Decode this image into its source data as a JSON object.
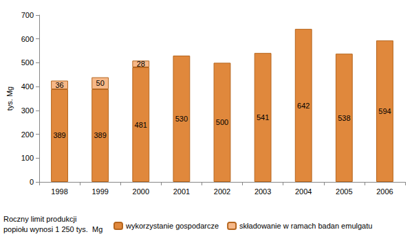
{
  "chart_data": {
    "type": "bar",
    "stacked": true,
    "y_label": "tys. Mg",
    "categories": [
      "1998",
      "1999",
      "2000",
      "2001",
      "2002",
      "2003",
      "2004",
      "2005",
      "2006"
    ],
    "series": [
      {
        "name": "wykorzystanie gospodarcze",
        "color": "#e0883c",
        "values": [
          389,
          389,
          481,
          530,
          500,
          541,
          642,
          538,
          594
        ]
      },
      {
        "name": "składowanie w ramach badan emulgatu",
        "color": "#f6b888",
        "values": [
          36,
          50,
          28,
          null,
          null,
          null,
          null,
          null,
          null
        ]
      }
    ],
    "ylim": [
      0,
      700
    ],
    "yticks": [
      0,
      100,
      200,
      300,
      400,
      500,
      600,
      700
    ],
    "grid": false,
    "legend": "bottom",
    "data_labels": true,
    "annotation": "Roczny limit produkcji\npopiołu wynosi 1 250 tys.  Mg"
  }
}
